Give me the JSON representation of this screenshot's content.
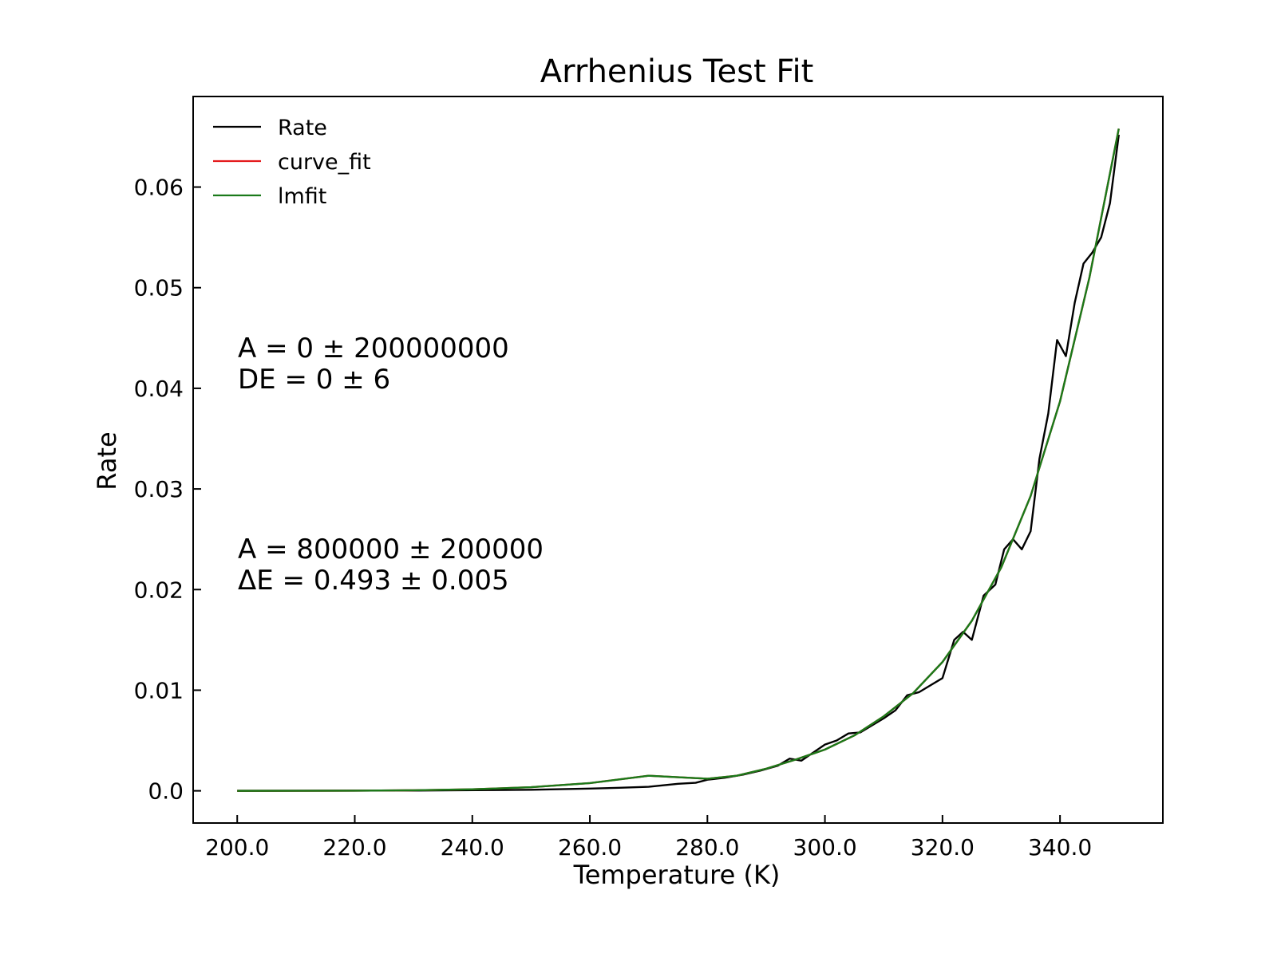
{
  "chart_data": {
    "type": "line",
    "title": "Arrhenius Test Fit",
    "xlabel": "Temperature (K)",
    "ylabel": "Rate",
    "xlim": [
      192.5,
      357.5
    ],
    "ylim": [
      -0.0032,
      0.069
    ],
    "x_ticks": [
      200,
      220,
      240,
      260,
      280,
      300,
      320,
      340
    ],
    "x_tick_labels": [
      "200.0",
      "220.0",
      "240.0",
      "260.0",
      "280.0",
      "300.0",
      "320.0",
      "340.0"
    ],
    "y_ticks": [
      0.0,
      0.01,
      0.02,
      0.03,
      0.04,
      0.05,
      0.06
    ],
    "y_tick_labels": [
      "0.0",
      "0.01",
      "0.02",
      "0.03",
      "0.04",
      "0.05",
      "0.06"
    ],
    "grid": false,
    "legend_position": "top-left",
    "legend": [
      "Rate",
      "curve_fit",
      "lmfit"
    ],
    "series": [
      {
        "name": "Rate",
        "color": "#000000",
        "x": [
          200,
          230,
          250,
          260,
          265,
          270,
          275,
          278,
          280,
          283,
          286,
          289,
          292,
          294,
          296,
          298,
          300,
          302,
          304,
          306,
          308,
          310,
          312,
          314,
          316,
          318,
          320,
          322,
          323.5,
          325,
          327,
          329,
          330.5,
          332,
          333.5,
          335,
          336.5,
          338,
          339.5,
          341,
          342.5,
          344,
          345.5,
          347,
          348.5,
          350
        ],
        "values": [
          0.0,
          3e-05,
          0.0001,
          0.00022,
          0.0003,
          0.0004,
          0.0007,
          0.0008,
          0.0011,
          0.0013,
          0.0016,
          0.002,
          0.0025,
          0.0032,
          0.003,
          0.0038,
          0.0046,
          0.005,
          0.0057,
          0.0058,
          0.0065,
          0.0072,
          0.008,
          0.0095,
          0.0098,
          0.0105,
          0.0112,
          0.015,
          0.0158,
          0.015,
          0.0194,
          0.0205,
          0.024,
          0.025,
          0.024,
          0.0258,
          0.033,
          0.0375,
          0.0448,
          0.0432,
          0.0485,
          0.0524,
          0.0535,
          0.055,
          0.0584,
          0.0652
        ]
      },
      {
        "name": "curve_fit",
        "color": "#e41a1c",
        "x": [
          200,
          210,
          220,
          230,
          240,
          250,
          260,
          270,
          280,
          285,
          290,
          295,
          300,
          305,
          310,
          315,
          320,
          325,
          330,
          335,
          340,
          345,
          350
        ],
        "values": [
          0.0,
          4e-06,
          1.7e-05,
          5.5e-05,
          0.00015,
          0.00036,
          0.00077,
          0.0015,
          0.0012,
          0.0015,
          0.0022,
          0.0031,
          0.0041,
          0.0055,
          0.0074,
          0.0097,
          0.0128,
          0.0169,
          0.0222,
          0.0293,
          0.0387,
          0.051,
          0.0658
        ]
      },
      {
        "name": "lmfit",
        "color": "#1a7a1a",
        "x": [
          200,
          210,
          220,
          230,
          240,
          250,
          260,
          270,
          280,
          285,
          290,
          295,
          300,
          305,
          310,
          315,
          320,
          325,
          330,
          335,
          340,
          345,
          350
        ],
        "values": [
          0.0,
          4e-06,
          1.7e-05,
          5.5e-05,
          0.00015,
          0.00036,
          0.00077,
          0.0015,
          0.0012,
          0.0015,
          0.0022,
          0.0031,
          0.0041,
          0.0055,
          0.0074,
          0.0097,
          0.0128,
          0.0169,
          0.0222,
          0.0293,
          0.0387,
          0.051,
          0.0658
        ]
      }
    ],
    "annotations": [
      {
        "lines": [
          "A = 0 ± 200000000",
          "DE = 0 ± 6"
        ]
      },
      {
        "lines": [
          "A = 800000 ± 200000",
          "ΔE = 0.493 ± 0.005"
        ]
      }
    ]
  }
}
